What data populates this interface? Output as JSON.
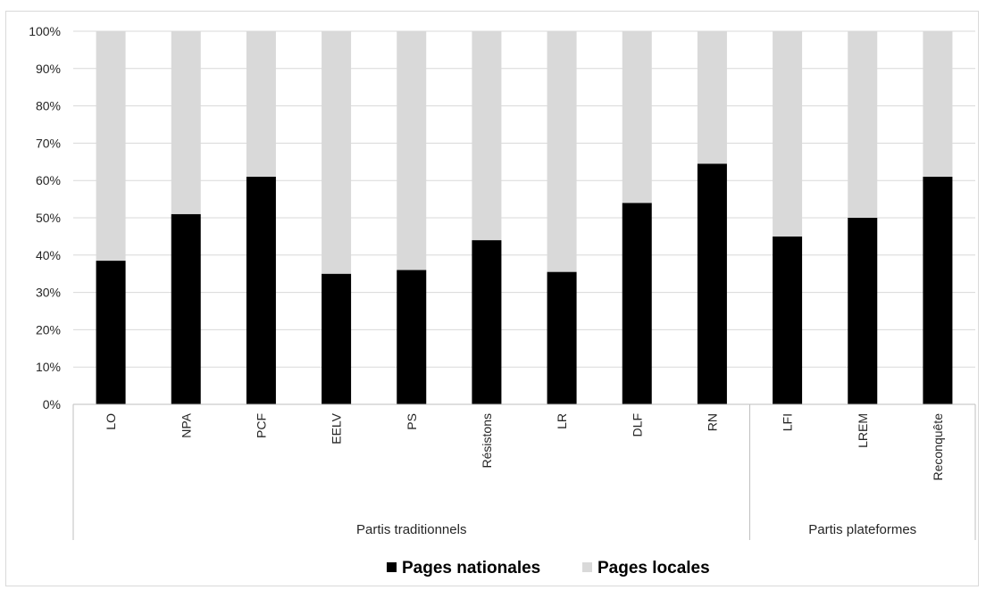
{
  "chart_data": {
    "type": "bar",
    "stacked": true,
    "normalized_percent": true,
    "categories": [
      "LO",
      "NPA",
      "PCF",
      "EELV",
      "PS",
      "Résistons",
      "LR",
      "DLF",
      "RN",
      "LFI",
      "LREM",
      "Reconquête"
    ],
    "groups": [
      {
        "label": "Partis traditionnels",
        "categories": [
          "LO",
          "NPA",
          "PCF",
          "EELV",
          "PS",
          "Résistons",
          "LR",
          "DLF",
          "RN"
        ]
      },
      {
        "label": "Partis plateformes",
        "categories": [
          "LFI",
          "LREM",
          "Reconquête"
        ]
      }
    ],
    "series": [
      {
        "name": "Pages nationales",
        "color": "#000000",
        "values": [
          38.5,
          51,
          61,
          35,
          36,
          44,
          35.5,
          54,
          64.5,
          45,
          50,
          61
        ]
      },
      {
        "name": "Pages locales",
        "color": "#d9d9d9",
        "values": [
          61.5,
          49,
          39,
          65,
          64,
          56,
          64.5,
          46,
          35.5,
          55,
          50,
          39
        ]
      }
    ],
    "ylim": [
      0,
      100
    ],
    "yticks": [
      "0%",
      "10%",
      "20%",
      "30%",
      "40%",
      "50%",
      "60%",
      "70%",
      "80%",
      "90%",
      "100%"
    ],
    "grid": true,
    "legend_position": "bottom",
    "title": "",
    "xlabel": "",
    "ylabel": ""
  }
}
